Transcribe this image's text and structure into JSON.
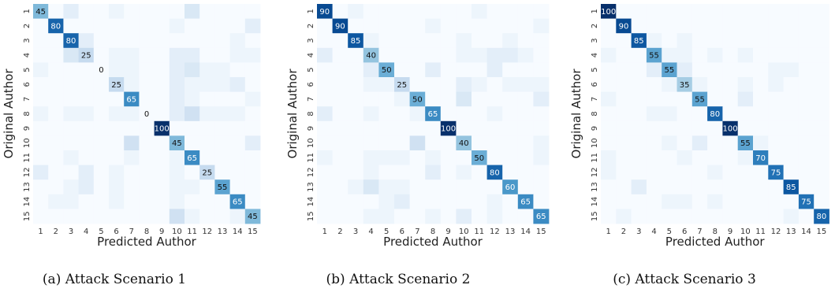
{
  "chart_data": [
    {
      "type": "heatmap",
      "caption": "(a) Attack Scenario 1",
      "xlabel": "Predicted Author",
      "ylabel": "Original Author",
      "x_categories": [
        "1",
        "2",
        "3",
        "4",
        "5",
        "6",
        "7",
        "8",
        "9",
        "10",
        "11",
        "12",
        "13",
        "14",
        "15"
      ],
      "y_categories": [
        "1",
        "2",
        "3",
        "4",
        "5",
        "6",
        "7",
        "8",
        "9",
        "10",
        "11",
        "12",
        "13",
        "14",
        "15"
      ],
      "colormap": "Blues",
      "vmax": 100,
      "values": [
        [
          45,
          0,
          10,
          0,
          0,
          5,
          0,
          0,
          0,
          0,
          15,
          0,
          0,
          0,
          0
        ],
        [
          0,
          80,
          0,
          0,
          0,
          0,
          0,
          0,
          0,
          5,
          0,
          0,
          0,
          0,
          10
        ],
        [
          0,
          0,
          80,
          10,
          0,
          0,
          0,
          0,
          0,
          0,
          0,
          0,
          0,
          5,
          0
        ],
        [
          0,
          0,
          15,
          25,
          0,
          5,
          5,
          0,
          0,
          10,
          10,
          0,
          0,
          5,
          5
        ],
        [
          5,
          0,
          0,
          0,
          0,
          5,
          5,
          0,
          0,
          10,
          15,
          5,
          5,
          0,
          0
        ],
        [
          0,
          0,
          0,
          0,
          0,
          25,
          5,
          0,
          0,
          10,
          5,
          5,
          5,
          10,
          0
        ],
        [
          0,
          0,
          0,
          0,
          0,
          0,
          65,
          0,
          0,
          10,
          5,
          0,
          0,
          0,
          5
        ],
        [
          5,
          0,
          5,
          5,
          0,
          5,
          5,
          0,
          0,
          10,
          20,
          5,
          5,
          5,
          0
        ],
        [
          0,
          0,
          0,
          0,
          0,
          0,
          0,
          0,
          100,
          0,
          0,
          0,
          0,
          0,
          0
        ],
        [
          0,
          0,
          0,
          0,
          0,
          0,
          20,
          0,
          0,
          45,
          0,
          0,
          0,
          0,
          10
        ],
        [
          0,
          0,
          5,
          0,
          0,
          0,
          5,
          0,
          0,
          5,
          65,
          0,
          0,
          0,
          0
        ],
        [
          10,
          0,
          0,
          10,
          0,
          5,
          0,
          0,
          0,
          5,
          0,
          25,
          0,
          0,
          0
        ],
        [
          0,
          0,
          5,
          10,
          0,
          5,
          0,
          0,
          0,
          5,
          5,
          0,
          55,
          0,
          0
        ],
        [
          0,
          5,
          5,
          0,
          0,
          5,
          0,
          0,
          0,
          5,
          0,
          0,
          0,
          65,
          0
        ],
        [
          0,
          0,
          0,
          0,
          0,
          0,
          0,
          0,
          0,
          20,
          5,
          0,
          0,
          5,
          45
        ]
      ]
    },
    {
      "type": "heatmap",
      "caption": "(b) Attack Scenario 2",
      "xlabel": "Predicted Author",
      "ylabel": "Original Author",
      "x_categories": [
        "1",
        "2",
        "3",
        "4",
        "5",
        "6",
        "7",
        "8",
        "9",
        "10",
        "11",
        "12",
        "13",
        "14",
        "15"
      ],
      "y_categories": [
        "1",
        "2",
        "3",
        "4",
        "5",
        "6",
        "7",
        "8",
        "9",
        "10",
        "11",
        "12",
        "13",
        "14",
        "15"
      ],
      "colormap": "Blues",
      "vmax": 100,
      "values": [
        [
          90,
          0,
          5,
          0,
          0,
          0,
          0,
          0,
          0,
          0,
          5,
          0,
          0,
          0,
          0
        ],
        [
          0,
          90,
          0,
          0,
          0,
          0,
          0,
          5,
          0,
          0,
          0,
          0,
          0,
          0,
          5
        ],
        [
          0,
          0,
          85,
          5,
          0,
          0,
          0,
          0,
          0,
          5,
          0,
          0,
          5,
          0,
          0
        ],
        [
          10,
          0,
          0,
          40,
          0,
          0,
          0,
          0,
          0,
          5,
          5,
          10,
          10,
          5,
          0
        ],
        [
          0,
          0,
          0,
          10,
          50,
          0,
          0,
          10,
          0,
          0,
          0,
          10,
          0,
          0,
          0
        ],
        [
          0,
          0,
          0,
          5,
          5,
          25,
          0,
          0,
          0,
          10,
          5,
          0,
          5,
          5,
          5
        ],
        [
          0,
          0,
          0,
          0,
          0,
          5,
          50,
          0,
          0,
          15,
          0,
          0,
          0,
          0,
          10
        ],
        [
          10,
          0,
          0,
          5,
          0,
          0,
          5,
          65,
          0,
          0,
          0,
          5,
          0,
          0,
          0
        ],
        [
          0,
          0,
          0,
          0,
          0,
          0,
          0,
          0,
          100,
          0,
          0,
          0,
          0,
          0,
          0
        ],
        [
          0,
          0,
          0,
          0,
          0,
          0,
          20,
          0,
          0,
          40,
          0,
          0,
          0,
          0,
          5
        ],
        [
          5,
          0,
          0,
          5,
          5,
          5,
          0,
          5,
          0,
          0,
          50,
          0,
          0,
          0,
          5
        ],
        [
          0,
          0,
          0,
          5,
          0,
          0,
          0,
          10,
          0,
          5,
          0,
          80,
          0,
          0,
          0
        ],
        [
          0,
          0,
          5,
          15,
          5,
          5,
          0,
          0,
          0,
          0,
          0,
          0,
          60,
          0,
          0
        ],
        [
          0,
          0,
          0,
          0,
          5,
          10,
          0,
          0,
          0,
          0,
          0,
          5,
          0,
          65,
          0
        ],
        [
          0,
          0,
          0,
          5,
          5,
          0,
          0,
          5,
          0,
          10,
          0,
          5,
          0,
          0,
          65
        ]
      ]
    },
    {
      "type": "heatmap",
      "caption": "(c) Attack Scenario 3",
      "xlabel": "Predicted Author",
      "ylabel": "Original Author",
      "x_categories": [
        "1",
        "2",
        "3",
        "4",
        "5",
        "6",
        "7",
        "8",
        "9",
        "10",
        "11",
        "12",
        "13",
        "14",
        "15"
      ],
      "y_categories": [
        "1",
        "2",
        "3",
        "4",
        "5",
        "6",
        "7",
        "8",
        "9",
        "10",
        "11",
        "12",
        "13",
        "14",
        "15"
      ],
      "colormap": "Blues",
      "vmax": 100,
      "values": [
        [
          100,
          0,
          0,
          0,
          0,
          0,
          0,
          0,
          0,
          0,
          0,
          0,
          0,
          0,
          0
        ],
        [
          0,
          90,
          0,
          0,
          0,
          0,
          0,
          0,
          0,
          0,
          0,
          0,
          0,
          0,
          0
        ],
        [
          0,
          0,
          85,
          5,
          0,
          5,
          0,
          0,
          0,
          0,
          0,
          0,
          0,
          0,
          0
        ],
        [
          5,
          0,
          0,
          55,
          5,
          5,
          0,
          5,
          0,
          5,
          0,
          0,
          0,
          0,
          0
        ],
        [
          0,
          0,
          0,
          10,
          55,
          10,
          0,
          0,
          0,
          0,
          0,
          5,
          5,
          0,
          0
        ],
        [
          0,
          0,
          0,
          0,
          5,
          35,
          5,
          0,
          0,
          5,
          0,
          5,
          0,
          0,
          0
        ],
        [
          5,
          0,
          0,
          0,
          0,
          0,
          55,
          0,
          0,
          10,
          0,
          0,
          0,
          0,
          0
        ],
        [
          0,
          0,
          0,
          5,
          5,
          0,
          0,
          80,
          0,
          0,
          0,
          0,
          0,
          0,
          0
        ],
        [
          0,
          0,
          0,
          0,
          0,
          0,
          0,
          0,
          100,
          0,
          0,
          0,
          0,
          0,
          0
        ],
        [
          0,
          0,
          0,
          0,
          5,
          0,
          10,
          0,
          0,
          55,
          5,
          0,
          0,
          0,
          0
        ],
        [
          5,
          0,
          0,
          0,
          0,
          5,
          0,
          0,
          0,
          5,
          70,
          0,
          0,
          0,
          0
        ],
        [
          5,
          0,
          0,
          0,
          0,
          0,
          0,
          5,
          0,
          0,
          0,
          75,
          0,
          0,
          0
        ],
        [
          0,
          0,
          10,
          0,
          0,
          0,
          0,
          0,
          0,
          0,
          0,
          0,
          85,
          0,
          0
        ],
        [
          0,
          0,
          0,
          0,
          5,
          5,
          0,
          5,
          0,
          0,
          0,
          0,
          0,
          75,
          0
        ],
        [
          0,
          5,
          0,
          0,
          0,
          0,
          0,
          0,
          0,
          0,
          0,
          0,
          5,
          0,
          80
        ]
      ]
    }
  ]
}
